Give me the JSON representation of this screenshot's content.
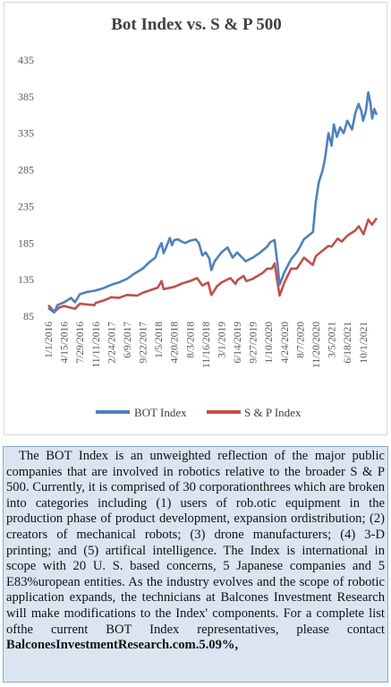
{
  "chart_data": {
    "type": "line",
    "title": "Bot Index vs. S & P 500",
    "xlabel": "",
    "ylabel": "",
    "ylim": [
      85,
      435
    ],
    "yticks": [
      85,
      135,
      185,
      235,
      285,
      335,
      385,
      435
    ],
    "xtick_labels": [
      "1/1/2016",
      "4/15/2016",
      "7/29/2016",
      "11/11/2016",
      "2/24/2017",
      "6/9/2017",
      "9/22/2017",
      "1/5/2018",
      "4/20/2018",
      "8/3/2018",
      "11/16/2018",
      "3/1/2019",
      "6/14/2019",
      "9/27/2019",
      "1/10/2020",
      "4/24/2020",
      "8/7/2020",
      "11/20/2020",
      "3/5/2021",
      "6/18/2021",
      "10/1/2021"
    ],
    "legend_position": "bottom",
    "grid": false,
    "series": [
      {
        "name": "BOT Index",
        "color": "#4f81bd",
        "points": [
          [
            "2016-01-01",
            96
          ],
          [
            "2016-02-10",
            90
          ],
          [
            "2016-03-01",
            100
          ],
          [
            "2016-04-15",
            104
          ],
          [
            "2016-06-01",
            110
          ],
          [
            "2016-06-27",
            104
          ],
          [
            "2016-07-29",
            115
          ],
          [
            "2016-09-15",
            118
          ],
          [
            "2016-11-11",
            120
          ],
          [
            "2016-12-31",
            123
          ],
          [
            "2017-02-24",
            128
          ],
          [
            "2017-04-15",
            131
          ],
          [
            "2017-06-09",
            136
          ],
          [
            "2017-07-20",
            142
          ],
          [
            "2017-09-22",
            150
          ],
          [
            "2017-11-01",
            158
          ],
          [
            "2017-12-15",
            165
          ],
          [
            "2018-01-05",
            177
          ],
          [
            "2018-01-26",
            185
          ],
          [
            "2018-02-08",
            171
          ],
          [
            "2018-03-01",
            181
          ],
          [
            "2018-03-22",
            192
          ],
          [
            "2018-04-05",
            182
          ],
          [
            "2018-04-20",
            189
          ],
          [
            "2018-05-15",
            190
          ],
          [
            "2018-06-10",
            187
          ],
          [
            "2018-07-01",
            185
          ],
          [
            "2018-08-03",
            188
          ],
          [
            "2018-09-10",
            190
          ],
          [
            "2018-10-01",
            185
          ],
          [
            "2018-10-25",
            168
          ],
          [
            "2018-11-16",
            172
          ],
          [
            "2018-12-10",
            164
          ],
          [
            "2018-12-24",
            148
          ],
          [
            "2019-01-15",
            160
          ],
          [
            "2019-02-10",
            167
          ],
          [
            "2019-03-01",
            172
          ],
          [
            "2019-04-10",
            179
          ],
          [
            "2019-05-15",
            165
          ],
          [
            "2019-06-14",
            172
          ],
          [
            "2019-08-10",
            160
          ],
          [
            "2019-09-27",
            165
          ],
          [
            "2019-11-15",
            172
          ],
          [
            "2019-12-31",
            180
          ],
          [
            "2020-01-20",
            186
          ],
          [
            "2020-02-19",
            189
          ],
          [
            "2020-03-10",
            155
          ],
          [
            "2020-03-23",
            128
          ],
          [
            "2020-04-24",
            145
          ],
          [
            "2020-06-08",
            163
          ],
          [
            "2020-07-15",
            172
          ],
          [
            "2020-08-07",
            180
          ],
          [
            "2020-09-01",
            190
          ],
          [
            "2020-10-01",
            195
          ],
          [
            "2020-11-01",
            200
          ],
          [
            "2020-11-20",
            242
          ],
          [
            "2020-12-10",
            268
          ],
          [
            "2021-01-05",
            285
          ],
          [
            "2021-01-20",
            300
          ],
          [
            "2021-02-12",
            335
          ],
          [
            "2021-03-05",
            318
          ],
          [
            "2021-03-20",
            347
          ],
          [
            "2021-04-10",
            330
          ],
          [
            "2021-05-01",
            343
          ],
          [
            "2021-05-25",
            335
          ],
          [
            "2021-06-18",
            352
          ],
          [
            "2021-07-20",
            340
          ],
          [
            "2021-08-10",
            362
          ],
          [
            "2021-09-01",
            375
          ],
          [
            "2021-09-20",
            365
          ],
          [
            "2021-10-01",
            352
          ],
          [
            "2021-10-20",
            365
          ],
          [
            "2021-11-05",
            391
          ],
          [
            "2021-11-20",
            375
          ],
          [
            "2021-12-01",
            355
          ],
          [
            "2021-12-15",
            368
          ],
          [
            "2021-12-31",
            360
          ]
        ]
      },
      {
        "name": "S & P Index",
        "color": "#c0504d",
        "points": [
          [
            "2016-01-01",
            100
          ],
          [
            "2016-02-10",
            91
          ],
          [
            "2016-03-15",
            97
          ],
          [
            "2016-04-15",
            99
          ],
          [
            "2016-06-27",
            95
          ],
          [
            "2016-07-29",
            102
          ],
          [
            "2016-11-04",
            100
          ],
          [
            "2016-11-11",
            103
          ],
          [
            "2016-12-31",
            106
          ],
          [
            "2017-02-24",
            111
          ],
          [
            "2017-04-15",
            110
          ],
          [
            "2017-06-09",
            114
          ],
          [
            "2017-08-15",
            113
          ],
          [
            "2017-09-22",
            117
          ],
          [
            "2017-12-31",
            124
          ],
          [
            "2018-01-26",
            133
          ],
          [
            "2018-02-08",
            122
          ],
          [
            "2018-04-20",
            125
          ],
          [
            "2018-06-15",
            130
          ],
          [
            "2018-08-03",
            133
          ],
          [
            "2018-09-20",
            137
          ],
          [
            "2018-10-25",
            127
          ],
          [
            "2018-12-03",
            131
          ],
          [
            "2018-12-24",
            114
          ],
          [
            "2019-01-31",
            126
          ],
          [
            "2019-03-01",
            131
          ],
          [
            "2019-04-30",
            137
          ],
          [
            "2019-06-03",
            129
          ],
          [
            "2019-06-14",
            134
          ],
          [
            "2019-07-26",
            140
          ],
          [
            "2019-08-15",
            133
          ],
          [
            "2019-09-27",
            136
          ],
          [
            "2019-11-30",
            144
          ],
          [
            "2019-12-31",
            150
          ],
          [
            "2020-01-31",
            150
          ],
          [
            "2020-02-19",
            157
          ],
          [
            "2020-03-10",
            130
          ],
          [
            "2020-03-23",
            113
          ],
          [
            "2020-04-24",
            131
          ],
          [
            "2020-06-08",
            150
          ],
          [
            "2020-07-15",
            150
          ],
          [
            "2020-08-07",
            157
          ],
          [
            "2020-09-02",
            165
          ],
          [
            "2020-10-30",
            155
          ],
          [
            "2020-11-20",
            167
          ],
          [
            "2020-12-31",
            174
          ],
          [
            "2021-02-12",
            181
          ],
          [
            "2021-03-05",
            180
          ],
          [
            "2021-04-15",
            191
          ],
          [
            "2021-05-12",
            187
          ],
          [
            "2021-06-18",
            195
          ],
          [
            "2021-08-10",
            202
          ],
          [
            "2021-09-02",
            208
          ],
          [
            "2021-10-04",
            197
          ],
          [
            "2021-11-05",
            217
          ],
          [
            "2021-11-30",
            210
          ],
          [
            "2021-12-31",
            219
          ]
        ]
      }
    ]
  },
  "description": {
    "body": "The BOT Index is an unweighted reflection of the major public companies that are involved in robotics relative to the broader S & P 500. Currently, it is comprised of 30 corporationthrees which are broken into categories including (1) users of rob.otic equipment in the production phase of product development, expansion ordistribution; (2) creators of mechanical robots; (3) drone manufacturers; (4) 3-D printing; and (5) artifical intelligence. The Index is international in scope with 20 U. S. based concerns, 5 Japanese companies and 5 E83%uropean entities. As the industry evolves and the scope of robotic application expands, the technicians at Balcones Investment Research will make modifications to the Index' components. For a complete list ofthe current BOT Index representatives, please contact",
    "link": "BalconesInvestmentResearch.com.5.09%,"
  }
}
